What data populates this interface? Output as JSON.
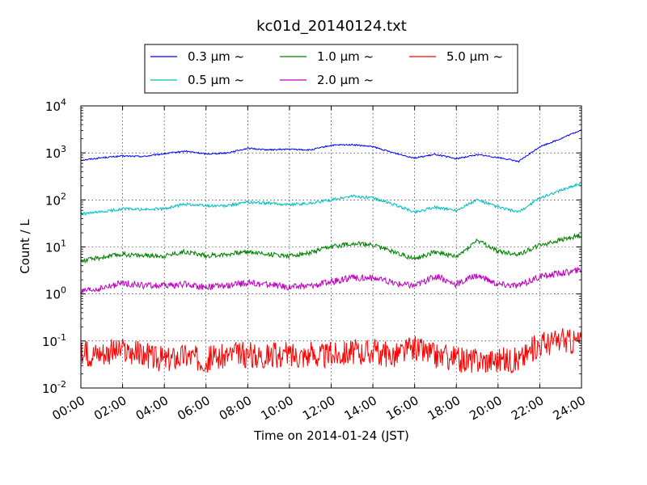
{
  "chart_data": {
    "type": "line",
    "title": "kc01d_20140124.txt",
    "xlabel": "Time on 2014-01-24 (JST)",
    "ylabel": "Count / L",
    "y_scale": "log",
    "ylim": [
      0.01,
      10000
    ],
    "x_unit": "hour",
    "xlim": [
      0,
      24
    ],
    "x_tick_labels": [
      "00:00",
      "02:00",
      "04:00",
      "06:00",
      "08:00",
      "10:00",
      "12:00",
      "14:00",
      "16:00",
      "18:00",
      "20:00",
      "22:00",
      "24:00"
    ],
    "y_tick_labels": [
      {
        "base": "10",
        "exp": "-2"
      },
      {
        "base": "10",
        "exp": "-1"
      },
      {
        "base": "10",
        "exp": "0"
      },
      {
        "base": "10",
        "exp": "1"
      },
      {
        "base": "10",
        "exp": "2"
      },
      {
        "base": "10",
        "exp": "3"
      },
      {
        "base": "10",
        "exp": "4"
      }
    ],
    "grid": true,
    "legend_position": "top-center",
    "series": [
      {
        "name": "0.3 μm ~",
        "color": "#0000ff",
        "x": [
          0,
          1,
          2,
          3,
          4,
          5,
          6,
          7,
          8,
          9,
          10,
          11,
          12,
          13,
          14,
          15,
          16,
          17,
          18,
          19,
          20,
          21,
          22,
          23,
          24
        ],
        "values": [
          700,
          790,
          860,
          840,
          960,
          1090,
          950,
          1000,
          1250,
          1160,
          1200,
          1150,
          1450,
          1500,
          1350,
          1000,
          780,
          930,
          750,
          920,
          800,
          660,
          1350,
          2000,
          3100
        ]
      },
      {
        "name": "0.5 μm ~",
        "color": "#00bfbf",
        "x": [
          0,
          1,
          2,
          3,
          4,
          5,
          6,
          7,
          8,
          9,
          10,
          11,
          12,
          13,
          14,
          15,
          16,
          17,
          18,
          19,
          20,
          21,
          22,
          23,
          24
        ],
        "values": [
          50,
          55,
          65,
          62,
          65,
          82,
          75,
          75,
          90,
          85,
          80,
          85,
          100,
          120,
          110,
          80,
          55,
          70,
          60,
          100,
          70,
          55,
          110,
          160,
          230
        ]
      },
      {
        "name": "1.0 μm ~",
        "color": "#008000",
        "x": [
          0,
          1,
          2,
          3,
          4,
          5,
          6,
          7,
          8,
          9,
          10,
          11,
          12,
          13,
          14,
          15,
          16,
          17,
          18,
          19,
          20,
          21,
          22,
          23,
          24
        ],
        "values": [
          5,
          6,
          7,
          6.5,
          6.5,
          8,
          6.5,
          7,
          8,
          7,
          6.5,
          7.5,
          10,
          12,
          11,
          8,
          5.5,
          8,
          6,
          14,
          8,
          7,
          11,
          14,
          18
        ]
      },
      {
        "name": "2.0 μm ~",
        "color": "#bf00bf",
        "x": [
          0,
          1,
          2,
          3,
          4,
          5,
          6,
          7,
          8,
          9,
          10,
          11,
          12,
          13,
          14,
          15,
          16,
          17,
          18,
          19,
          20,
          21,
          22,
          23,
          24
        ],
        "values": [
          1.1,
          1.3,
          1.7,
          1.5,
          1.5,
          1.6,
          1.4,
          1.5,
          1.7,
          1.6,
          1.4,
          1.5,
          1.8,
          2.2,
          2.2,
          1.7,
          1.5,
          2.4,
          1.6,
          2.5,
          1.6,
          1.5,
          2.3,
          2.8,
          3.2
        ]
      },
      {
        "name": "5.0 μm ~",
        "color": "#ff0000",
        "x": [
          0,
          1,
          2,
          3,
          4,
          5,
          6,
          7,
          8,
          9,
          10,
          11,
          12,
          13,
          14,
          15,
          16,
          17,
          18,
          19,
          20,
          21,
          22,
          23,
          24
        ],
        "values": [
          0.05,
          0.06,
          0.06,
          0.05,
          0.04,
          0.05,
          0.04,
          0.05,
          0.05,
          0.05,
          0.05,
          0.05,
          0.05,
          0.06,
          0.06,
          0.05,
          0.07,
          0.05,
          0.04,
          0.04,
          0.04,
          0.04,
          0.09,
          0.1,
          0.1
        ]
      }
    ]
  }
}
